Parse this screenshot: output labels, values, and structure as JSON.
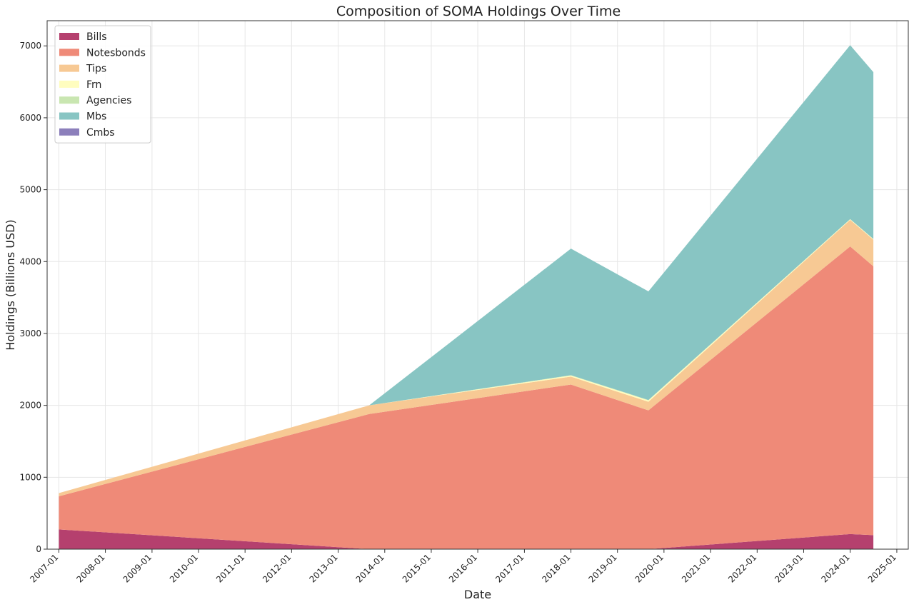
{
  "chart_data": {
    "type": "area",
    "stacked": true,
    "title": "Composition of SOMA Holdings Over Time",
    "xlabel": "Date",
    "ylabel": "Holdings (Billions USD)",
    "x_ticks": [
      "2007-01",
      "2008-01",
      "2009-01",
      "2010-01",
      "2011-01",
      "2012-01",
      "2013-01",
      "2014-01",
      "2015-01",
      "2016-01",
      "2017-01",
      "2018-01",
      "2019-01",
      "2020-01",
      "2021-01",
      "2022-01",
      "2023-01",
      "2024-01",
      "2025-01"
    ],
    "x_range": [
      "2006-10",
      "2025-04"
    ],
    "y_ticks": [
      0,
      1000,
      2000,
      3000,
      4000,
      5000,
      6000,
      7000
    ],
    "ylim": [
      0,
      7350
    ],
    "grid": true,
    "legend_position": "top-left",
    "x": [
      "2007-01",
      "2013-09",
      "2018-01",
      "2019-09",
      "2024-01",
      "2024-07"
    ],
    "series": [
      {
        "name": "Bills",
        "color": "#b5406e",
        "values": [
          275,
          0,
          0,
          0,
          210,
          195
        ]
      },
      {
        "name": "Notesbonds",
        "color": "#ef8a78",
        "values": [
          460,
          1880,
          2290,
          1930,
          4000,
          3740
        ]
      },
      {
        "name": "Tips",
        "color": "#f7c994",
        "values": [
          45,
          120,
          110,
          120,
          370,
          370
        ]
      },
      {
        "name": "Frn",
        "color": "#fffdbf",
        "values": [
          0,
          0,
          15,
          20,
          10,
          10
        ]
      },
      {
        "name": "Agencies",
        "color": "#c9e6b1",
        "values": [
          0,
          0,
          5,
          5,
          0,
          0
        ]
      },
      {
        "name": "Mbs",
        "color": "#88c5c3",
        "values": [
          0,
          0,
          1760,
          1510,
          2420,
          2320
        ]
      },
      {
        "name": "Cmbs",
        "color": "#8c7fbb",
        "values": [
          0,
          0,
          0,
          0,
          0,
          0
        ]
      }
    ]
  }
}
